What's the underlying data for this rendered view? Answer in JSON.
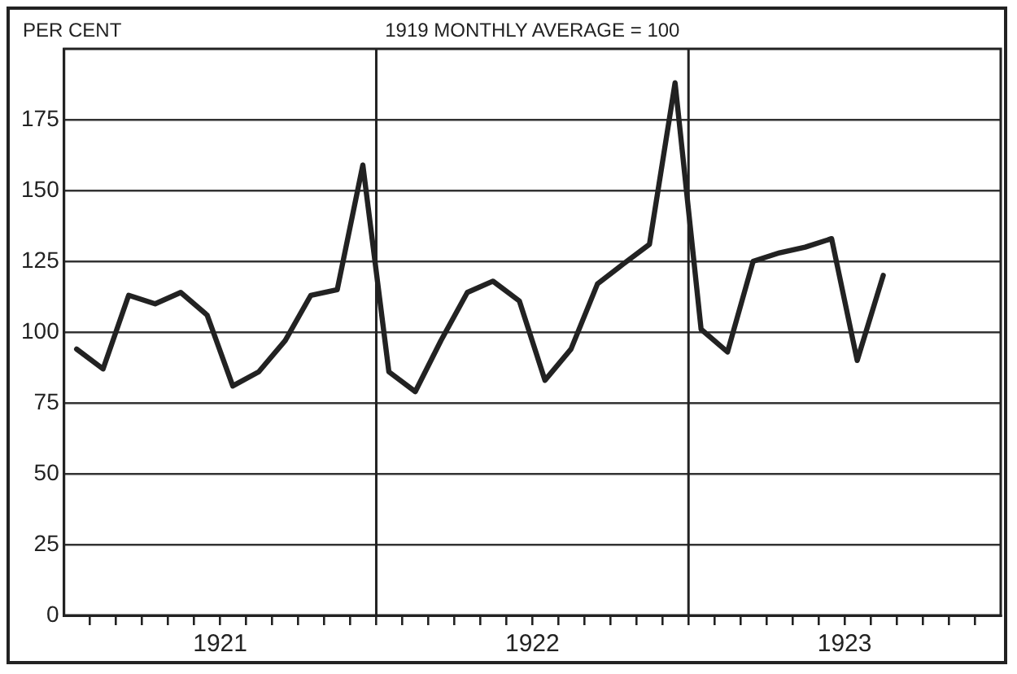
{
  "chart_data": {
    "type": "line",
    "title": "1919 MONTHLY AVERAGE = 100",
    "ylabel": "PER CENT",
    "x": [
      "1921-01-16",
      "1921-02-15",
      "1921-03-16",
      "1921-04-16",
      "1921-05-16",
      "1921-06-16",
      "1921-07-16",
      "1921-08-16",
      "1921-09-16",
      "1921-10-16",
      "1921-11-16",
      "1921-12-16",
      "1922-01-16",
      "1922-02-15",
      "1922-03-16",
      "1922-04-16",
      "1922-05-16",
      "1922-06-16",
      "1922-07-16",
      "1922-08-16",
      "1922-09-16",
      "1922-10-16",
      "1922-11-16",
      "1922-12-16",
      "1923-01-16",
      "1923-02-15",
      "1923-03-16",
      "1923-04-16",
      "1923-05-16",
      "1923-06-16",
      "1923-07-16",
      "1923-08-16"
    ],
    "series": [
      {
        "color": "#222222",
        "values": [
          94,
          87,
          113,
          110,
          114,
          106,
          81,
          86,
          97,
          113,
          115,
          159,
          86,
          79,
          97,
          114,
          118,
          111,
          83,
          94,
          117,
          124,
          131,
          188,
          101,
          93,
          125,
          128,
          130,
          133,
          90,
          120
        ]
      }
    ],
    "xlim": [
      "1921-01-01",
      "1924-01-01"
    ],
    "xticks": [
      {
        "value": "1921-02-01",
        "label": null
      },
      {
        "value": "1921-03-01",
        "label": null
      },
      {
        "value": "1921-04-01",
        "label": null
      },
      {
        "value": "1921-05-01",
        "label": null
      },
      {
        "value": "1921-06-01",
        "label": null
      },
      {
        "value": "1921-07-01",
        "label": "1921"
      },
      {
        "value": "1921-08-01",
        "label": null
      },
      {
        "value": "1921-09-01",
        "label": null
      },
      {
        "value": "1921-10-01",
        "label": null
      },
      {
        "value": "1921-11-01",
        "label": null
      },
      {
        "value": "1921-12-01",
        "label": null
      },
      {
        "value": "1922-01-01",
        "label": null
      },
      {
        "value": "1922-02-01",
        "label": null
      },
      {
        "value": "1922-03-01",
        "label": null
      },
      {
        "value": "1922-04-01",
        "label": null
      },
      {
        "value": "1922-05-01",
        "label": null
      },
      {
        "value": "1922-06-01",
        "label": null
      },
      {
        "value": "1922-07-01",
        "label": "1922"
      },
      {
        "value": "1922-08-01",
        "label": null
      },
      {
        "value": "1922-09-01",
        "label": null
      },
      {
        "value": "1922-10-01",
        "label": null
      },
      {
        "value": "1922-11-01",
        "label": null
      },
      {
        "value": "1922-12-01",
        "label": null
      },
      {
        "value": "1923-01-01",
        "label": null
      },
      {
        "value": "1923-02-01",
        "label": null
      },
      {
        "value": "1923-03-01",
        "label": null
      },
      {
        "value": "1923-04-01",
        "label": null
      },
      {
        "value": "1923-05-01",
        "label": null
      },
      {
        "value": "1923-06-01",
        "label": null
      },
      {
        "value": "1923-07-01",
        "label": "1923"
      },
      {
        "value": "1923-08-01",
        "label": null
      },
      {
        "value": "1923-09-01",
        "label": null
      },
      {
        "value": "1923-10-01",
        "label": null
      },
      {
        "value": "1923-11-01",
        "label": null
      },
      {
        "value": "1923-12-01",
        "label": null
      }
    ],
    "ylim": [
      0,
      200
    ],
    "yticks": [
      0,
      25,
      50,
      75,
      100,
      125,
      150,
      175
    ],
    "ref_lines": [
      {
        "axis": "x",
        "value": "1922-01-01"
      },
      {
        "axis": "x",
        "value": "1923-01-01"
      }
    ],
    "grid": "y",
    "legend": false,
    "marker": "none",
    "line_style": "solid"
  }
}
